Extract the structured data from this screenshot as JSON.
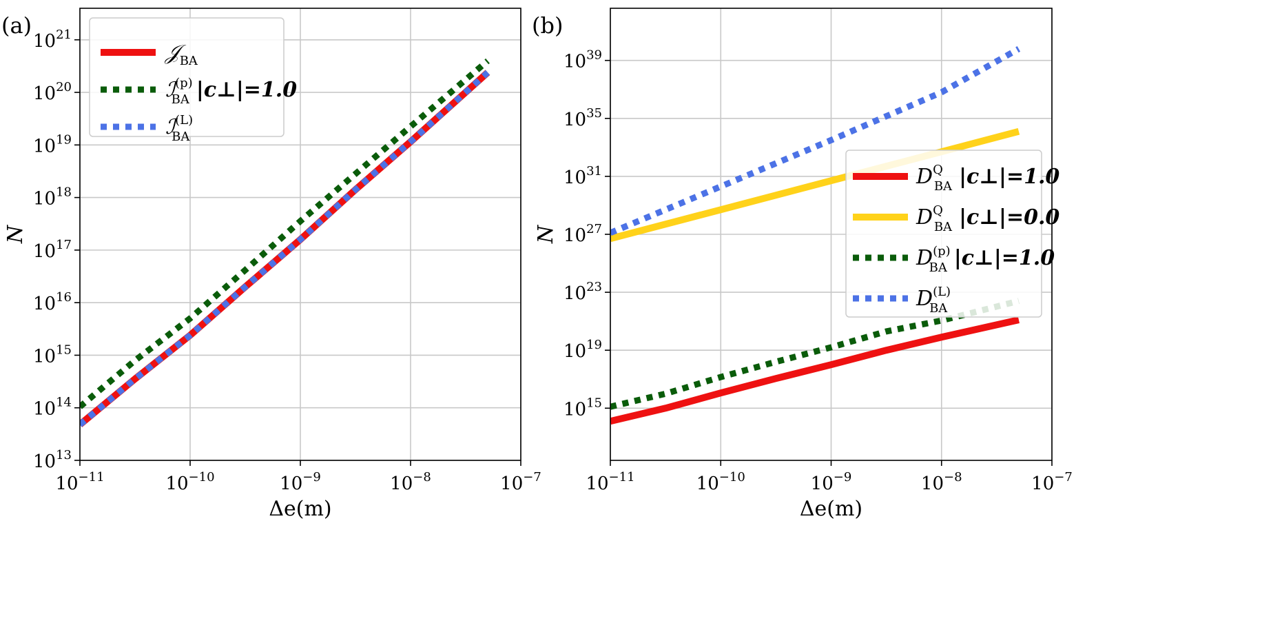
{
  "colors": {
    "red": "#ee1111",
    "gold": "#ffd21a",
    "green": "#0a5c0a",
    "blue": "#4c72e6"
  },
  "chart_data": [
    {
      "type": "line",
      "panel_label": "(a)",
      "xlabel": "Δe(m)",
      "ylabel": "N",
      "xscale": "log",
      "yscale": "log",
      "xlim_log10": [
        -11,
        -7
      ],
      "ylim_log10": [
        13,
        21.6
      ],
      "x_ticks": [
        {
          "exp": -11,
          "base": "10",
          "sup": "−11"
        },
        {
          "exp": -10,
          "base": "10",
          "sup": "−10"
        },
        {
          "exp": -9,
          "base": "10",
          "sup": "−9"
        },
        {
          "exp": -8,
          "base": "10",
          "sup": "−8"
        },
        {
          "exp": -7,
          "base": "10",
          "sup": "−7"
        }
      ],
      "y_ticks": [
        {
          "exp": 13,
          "base": "10",
          "sup": "13"
        },
        {
          "exp": 14,
          "base": "10",
          "sup": "14"
        },
        {
          "exp": 15,
          "base": "10",
          "sup": "15"
        },
        {
          "exp": 16,
          "base": "10",
          "sup": "16"
        },
        {
          "exp": 17,
          "base": "10",
          "sup": "17"
        },
        {
          "exp": 18,
          "base": "10",
          "sup": "18"
        },
        {
          "exp": 19,
          "base": "10",
          "sup": "19"
        },
        {
          "exp": 20,
          "base": "10",
          "sup": "20"
        },
        {
          "exp": 21,
          "base": "10",
          "sup": "21"
        }
      ],
      "grid": true,
      "legend_position": "upper-left",
      "series": [
        {
          "name": "J_BA",
          "legend": {
            "sym": "𝒥",
            "sub": "BA",
            "sup": "",
            "extra": ""
          },
          "color": "red",
          "style": "solid",
          "log10_x": [
            -11,
            -10.5,
            -10,
            -9.5,
            -9,
            -8.5,
            -8,
            -7.3
          ],
          "log10_y": [
            13.68,
            14.55,
            15.38,
            16.3,
            17.2,
            18.15,
            19.06,
            20.38
          ]
        },
        {
          "name": "I_BA^(p) |c_perp|=1.0",
          "legend": {
            "sym": "ℐ",
            "sub": "BA",
            "sup": "(p)",
            "extra": "|c⊥|=1.0"
          },
          "color": "green",
          "style": "dotted",
          "log10_x": [
            -11,
            -10.5,
            -10,
            -9.5,
            -9,
            -8.5,
            -8,
            -7.3
          ],
          "log10_y": [
            14.02,
            14.9,
            15.7,
            16.62,
            17.55,
            18.45,
            19.35,
            20.6
          ]
        },
        {
          "name": "I_BA^(L)",
          "legend": {
            "sym": "ℐ",
            "sub": "BA",
            "sup": "(L)",
            "extra": ""
          },
          "color": "blue",
          "style": "dotted",
          "log10_x": [
            -11,
            -10.5,
            -10,
            -9.5,
            -9,
            -8.5,
            -8,
            -7.3
          ],
          "log10_y": [
            13.68,
            14.55,
            15.38,
            16.3,
            17.2,
            18.15,
            19.06,
            20.38
          ]
        }
      ]
    },
    {
      "type": "line",
      "panel_label": "(b)",
      "xlabel": "Δe(m)",
      "ylabel": "N",
      "xscale": "log",
      "yscale": "log",
      "xlim_log10": [
        -11,
        -7
      ],
      "ylim_log10": [
        11.4,
        42.6
      ],
      "x_ticks": [
        {
          "exp": -11,
          "base": "10",
          "sup": "−11"
        },
        {
          "exp": -10,
          "base": "10",
          "sup": "−10"
        },
        {
          "exp": -9,
          "base": "10",
          "sup": "−9"
        },
        {
          "exp": -8,
          "base": "10",
          "sup": "−8"
        },
        {
          "exp": -7,
          "base": "10",
          "sup": "−7"
        }
      ],
      "y_ticks": [
        {
          "exp": 15,
          "base": "10",
          "sup": "15"
        },
        {
          "exp": 19,
          "base": "10",
          "sup": "19"
        },
        {
          "exp": 23,
          "base": "10",
          "sup": "23"
        },
        {
          "exp": 27,
          "base": "10",
          "sup": "27"
        },
        {
          "exp": 31,
          "base": "10",
          "sup": "31"
        },
        {
          "exp": 35,
          "base": "10",
          "sup": "35"
        },
        {
          "exp": 39,
          "base": "10",
          "sup": "39"
        }
      ],
      "grid": true,
      "legend_position": "center-right",
      "series": [
        {
          "name": "D_BA^Q |c_perp|=1.0",
          "legend": {
            "sym": "D",
            "sub": "BA",
            "sup": "Q",
            "extra": "|c⊥|=1.0"
          },
          "color": "red",
          "style": "solid",
          "log10_x": [
            -11,
            -10.5,
            -10,
            -9.5,
            -9,
            -8.5,
            -8,
            -7.3
          ],
          "log10_y": [
            14.1,
            15.0,
            16.05,
            17.05,
            18.0,
            19.0,
            19.9,
            21.1
          ]
        },
        {
          "name": "D_BA^Q |c_perp|=0.0",
          "legend": {
            "sym": "D",
            "sub": "BA",
            "sup": "Q",
            "extra": "|c⊥|=0.0"
          },
          "color": "gold",
          "style": "solid",
          "log10_x": [
            -11,
            -10,
            -9,
            -8,
            -7.3
          ],
          "log10_y": [
            26.7,
            28.7,
            30.7,
            32.7,
            34.1
          ]
        },
        {
          "name": "D_BA^(p) |c_perp|=1.0",
          "legend": {
            "sym": "D",
            "sub": "BA",
            "sup": "(p)",
            "extra": "|c⊥|=1.0"
          },
          "color": "green",
          "style": "dotted",
          "log10_x": [
            -11,
            -10.5,
            -10,
            -9.5,
            -9,
            -8.5,
            -8,
            -7.3
          ],
          "log10_y": [
            15.1,
            16.0,
            17.15,
            18.2,
            19.2,
            20.3,
            21.05,
            22.4
          ]
        },
        {
          "name": "D_BA^(L)",
          "legend": {
            "sym": "D",
            "sub": "BA",
            "sup": "(L)",
            "extra": ""
          },
          "color": "blue",
          "style": "dotted",
          "log10_x": [
            -11,
            -10,
            -9,
            -8,
            -7.3
          ],
          "log10_y": [
            27.1,
            30.3,
            33.5,
            36.8,
            39.8
          ]
        }
      ]
    }
  ]
}
